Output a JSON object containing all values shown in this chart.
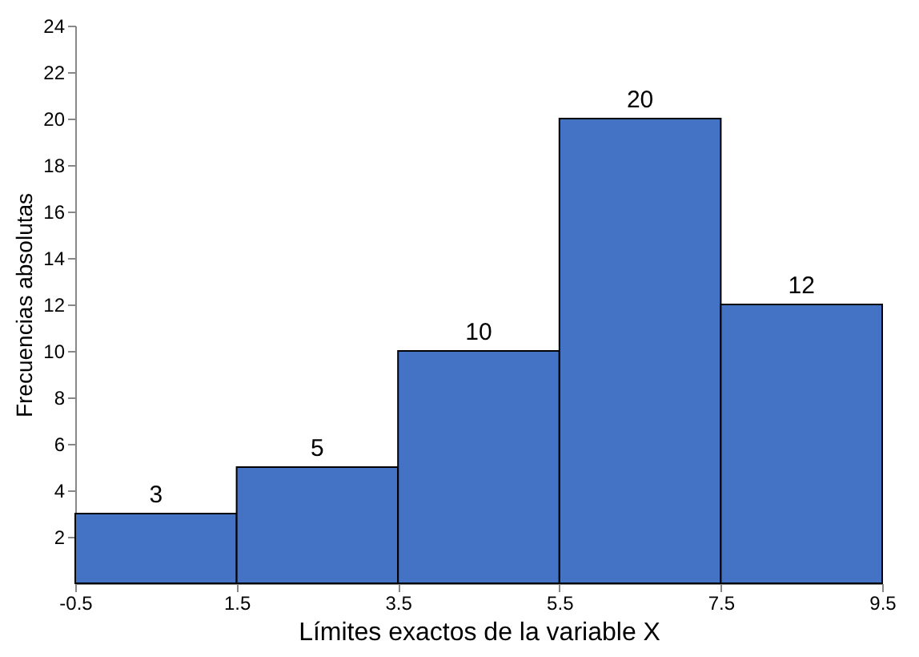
{
  "chart_data": {
    "type": "histogram",
    "xlabel": "Límites exactos de la variable X",
    "ylabel": "Frecuencias absolutas",
    "bins": [
      -0.5,
      1.5,
      3.5,
      5.5,
      7.5,
      9.5
    ],
    "values": [
      3,
      5,
      10,
      20,
      12
    ],
    "color": "#4472c4",
    "xlim": [
      -0.5,
      9.5
    ],
    "xticks": [
      -0.5,
      1.5,
      3.5,
      5.5,
      7.5,
      9.5
    ],
    "ylim": [
      0,
      24
    ],
    "yticks": [
      2,
      4,
      6,
      8,
      10,
      12,
      14,
      16,
      18,
      20,
      22,
      24
    ],
    "grid": false,
    "data_labels": true
  }
}
